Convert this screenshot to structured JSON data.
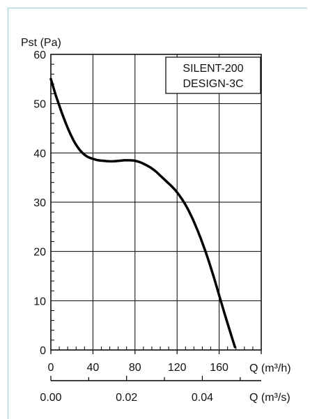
{
  "chart_data": {
    "type": "line",
    "ylabel": "Pst (Pa)",
    "xlabel_primary": "Q (m³/h)",
    "xlabel_secondary": "Q (m³/s)",
    "ylim": [
      0,
      60
    ],
    "xlim_primary": [
      0,
      200
    ],
    "y_ticks": [
      "0",
      "10",
      "20",
      "30",
      "40",
      "50",
      "60"
    ],
    "x_ticks_primary": [
      "0",
      "40",
      "80",
      "120",
      "160"
    ],
    "x_ticks_secondary": [
      "0.00",
      "0.02",
      "0.04"
    ],
    "grid": true,
    "legend_lines": [
      "SILENT-200",
      "DESIGN-3C"
    ],
    "legend_position": "top-right",
    "series": [
      {
        "x": [
          0,
          5,
          10,
          15,
          20,
          25,
          30,
          35,
          40,
          45,
          50,
          55,
          60,
          65,
          70,
          75,
          80,
          85,
          90,
          95,
          100,
          105,
          110,
          115,
          120,
          125,
          130,
          135,
          140,
          145,
          150,
          155,
          160,
          165,
          170,
          175
        ],
        "values": [
          55,
          51.5,
          48.4,
          45.6,
          43.2,
          41.3,
          40,
          39.2,
          38.8,
          38.5,
          38.4,
          38.3,
          38.3,
          38.4,
          38.5,
          38.5,
          38.4,
          38.1,
          37.6,
          37,
          36.2,
          35.2,
          34.2,
          33.2,
          32,
          30.5,
          28.7,
          26.5,
          24,
          21.2,
          18.1,
          14.7,
          11.1,
          7.5,
          4,
          0.6
        ],
        "color": "#000000"
      }
    ]
  }
}
